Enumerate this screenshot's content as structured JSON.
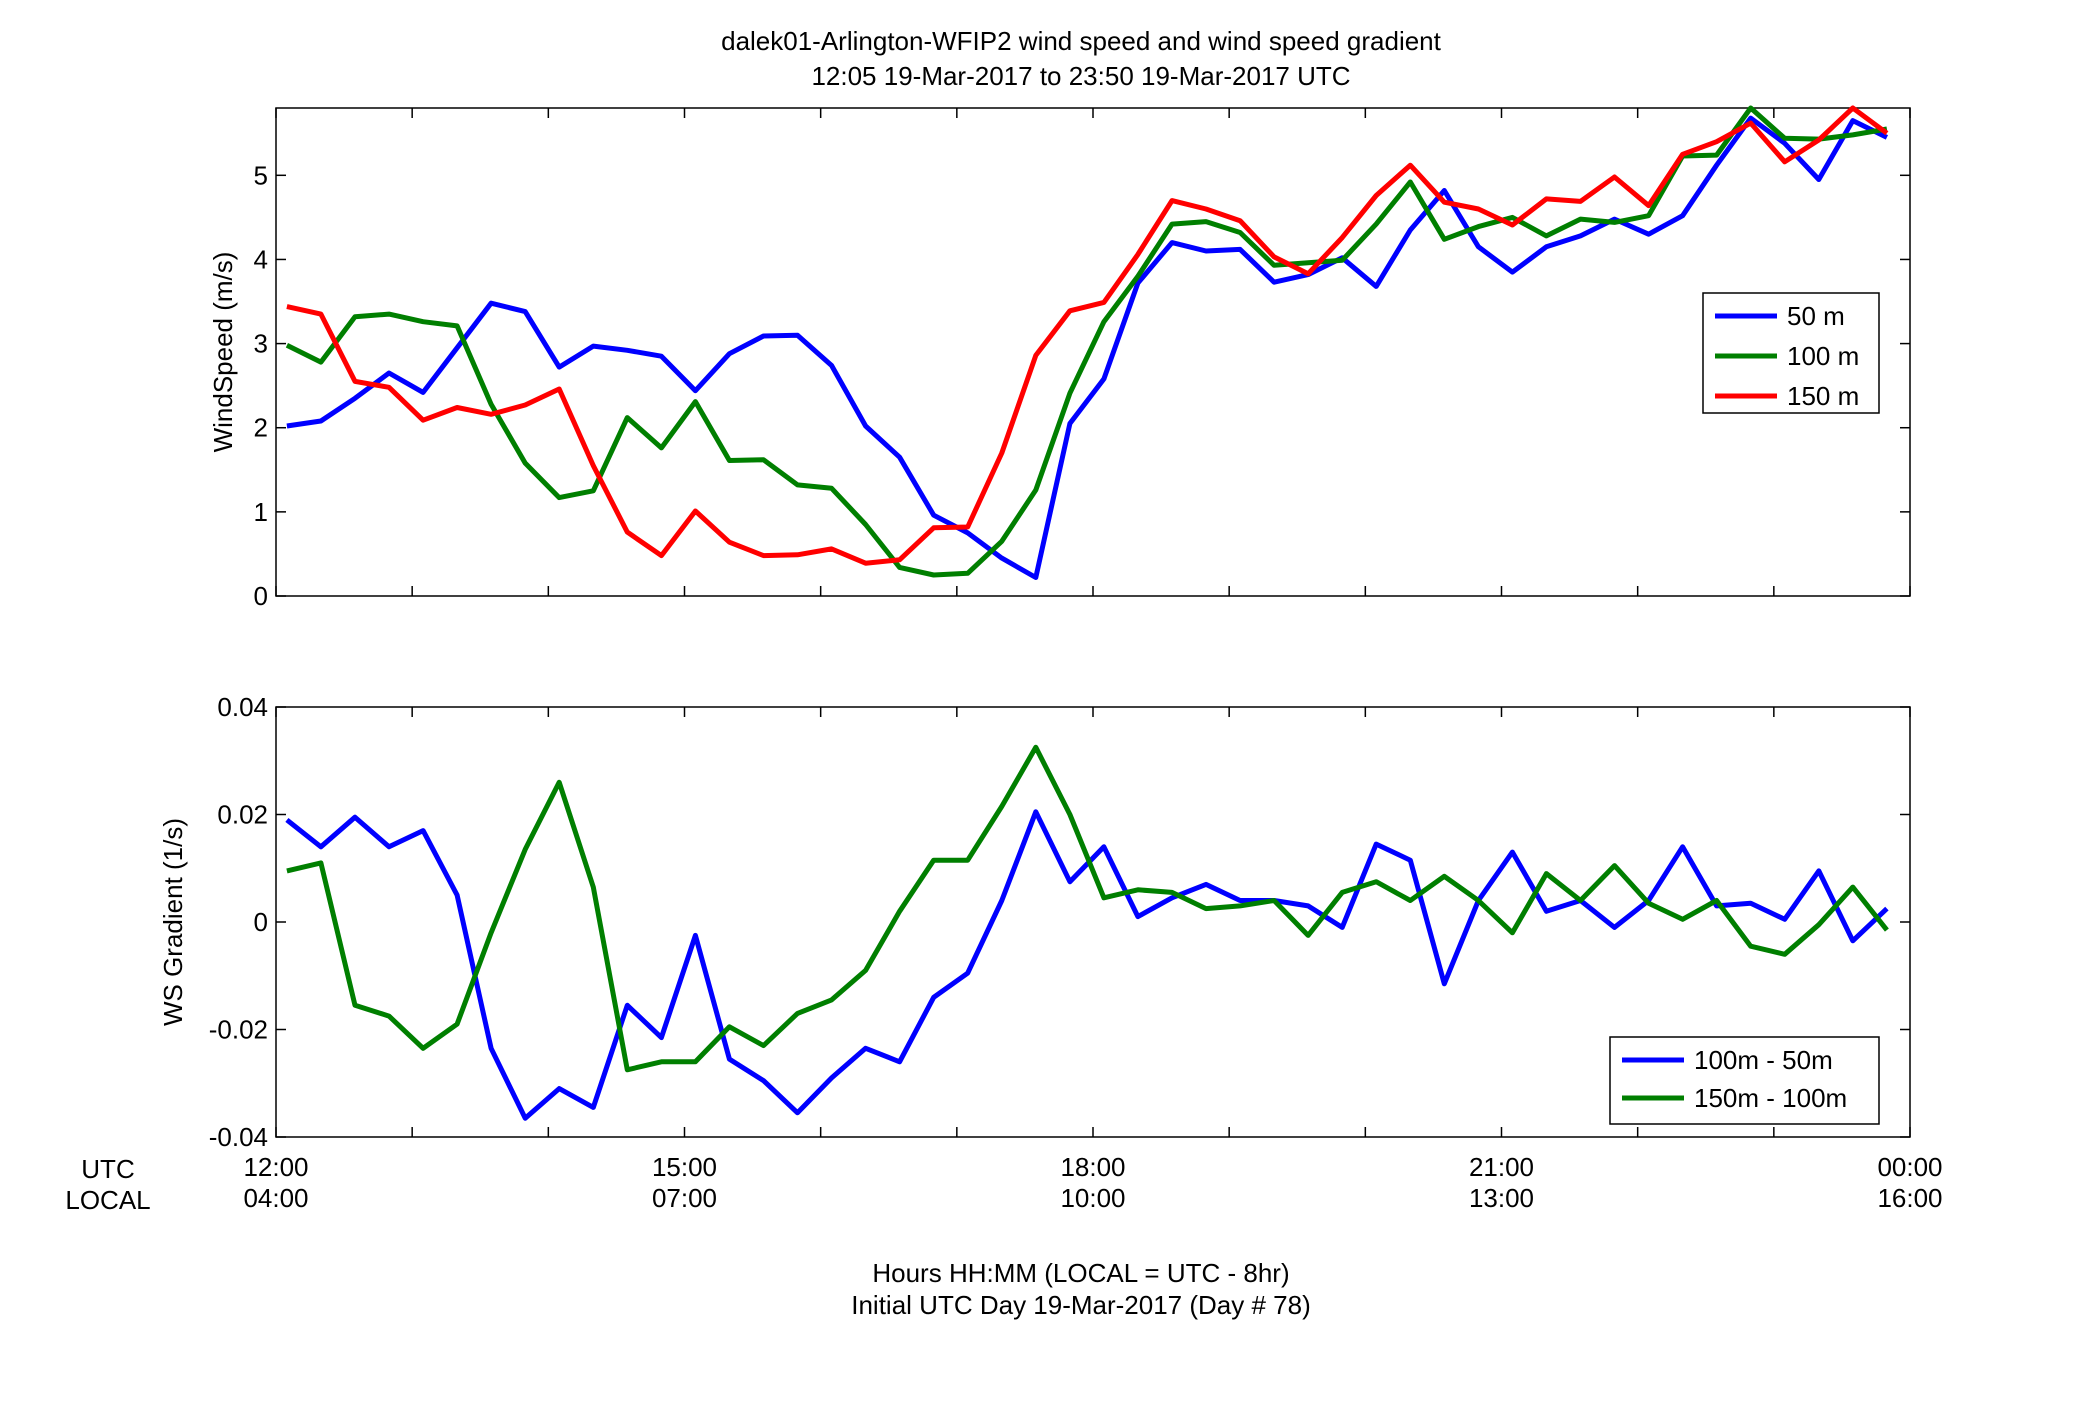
{
  "title": {
    "line1": "dalek01-Arlington-WFIP2  wind speed and wind speed gradient",
    "line2": "12:05 19-Mar-2017 to 23:50 19-Mar-2017  UTC"
  },
  "xaxis": {
    "row_label_utc": "UTC",
    "row_label_local": "LOCAL",
    "range_hours": [
      12,
      24
    ],
    "ticks_major": [
      {
        "hour": 12,
        "utc": "12:00",
        "local": "04:00"
      },
      {
        "hour": 15,
        "utc": "15:00",
        "local": "07:00"
      },
      {
        "hour": 18,
        "utc": "18:00",
        "local": "10:00"
      },
      {
        "hour": 21,
        "utc": "21:00",
        "local": "13:00"
      },
      {
        "hour": 24,
        "utc": "00:00",
        "local": "16:00"
      }
    ],
    "ticks_minor_hours": [
      13,
      14,
      16,
      17,
      19,
      20,
      22,
      23
    ],
    "label_line1": "Hours HH:MM  (LOCAL = UTC - 8hr)",
    "label_line2": "Initial UTC Day 19-Mar-2017 (Day # 78)"
  },
  "colors": {
    "blue": "#0000ff",
    "green": "#007f00",
    "red": "#ff0000"
  },
  "chart_data": [
    {
      "type": "line",
      "ylabel": "WindSpeed (m/s)",
      "ylim": [
        0,
        5.8
      ],
      "yticks": [
        0,
        1,
        2,
        3,
        4,
        5
      ],
      "ytick_labels": [
        "0",
        "1",
        "2",
        "3",
        "4",
        "5"
      ],
      "legend_position": "right",
      "x": [
        12.08,
        12.33,
        12.58,
        12.83,
        13.08,
        13.33,
        13.58,
        13.83,
        14.08,
        14.33,
        14.58,
        14.83,
        15.08,
        15.33,
        15.58,
        15.83,
        16.08,
        16.33,
        16.58,
        16.83,
        17.08,
        17.33,
        17.58,
        17.83,
        18.08,
        18.33,
        18.58,
        18.83,
        19.08,
        19.33,
        19.58,
        19.83,
        20.08,
        20.33,
        20.58,
        20.83,
        21.08,
        21.33,
        21.58,
        21.83,
        22.08,
        22.33,
        22.58,
        22.83,
        23.08,
        23.33,
        23.58,
        23.83
      ],
      "series": [
        {
          "name": "50 m",
          "color": "#0000ff",
          "values": [
            2.02,
            2.08,
            2.35,
            2.65,
            2.42,
            2.95,
            3.48,
            3.38,
            2.72,
            2.97,
            2.92,
            2.85,
            2.44,
            2.88,
            3.09,
            3.1,
            2.74,
            2.02,
            1.65,
            0.96,
            0.75,
            0.45,
            0.22,
            2.05,
            2.58,
            3.72,
            4.2,
            4.1,
            4.12,
            3.73,
            3.82,
            4.02,
            3.68,
            4.35,
            4.82,
            4.15,
            3.85,
            4.15,
            4.28,
            4.48,
            4.3,
            4.52,
            5.12,
            5.68,
            5.38,
            4.95,
            5.65,
            5.45
          ]
        },
        {
          "name": "100 m",
          "color": "#007f00",
          "values": [
            2.98,
            2.78,
            3.32,
            3.35,
            3.26,
            3.21,
            2.28,
            1.58,
            1.17,
            1.25,
            2.12,
            1.76,
            2.31,
            1.61,
            1.62,
            1.32,
            1.28,
            0.85,
            0.34,
            0.25,
            0.27,
            0.65,
            1.26,
            2.41,
            3.26,
            3.8,
            4.42,
            4.45,
            4.32,
            3.93,
            3.96,
            3.99,
            4.42,
            4.92,
            4.24,
            4.39,
            4.5,
            4.28,
            4.48,
            4.44,
            4.52,
            5.23,
            5.24,
            5.8,
            5.44,
            5.43,
            5.48,
            5.55
          ]
        },
        {
          "name": "150 m",
          "color": "#ff0000",
          "values": [
            3.44,
            3.35,
            2.55,
            2.48,
            2.09,
            2.24,
            2.16,
            2.27,
            2.46,
            1.55,
            0.76,
            0.48,
            1.01,
            0.64,
            0.48,
            0.49,
            0.56,
            0.39,
            0.43,
            0.81,
            0.82,
            1.7,
            2.86,
            3.39,
            3.49,
            4.06,
            4.7,
            4.6,
            4.46,
            4.03,
            3.83,
            4.26,
            4.76,
            5.12,
            4.68,
            4.6,
            4.41,
            4.72,
            4.69,
            4.98,
            4.64,
            5.25,
            5.4,
            5.62,
            5.16,
            5.42,
            5.8,
            5.5
          ]
        }
      ]
    },
    {
      "type": "line",
      "ylabel": "WS Gradient (1/s)",
      "ylim": [
        -0.04,
        0.04
      ],
      "yticks": [
        -0.04,
        -0.02,
        0,
        0.02,
        0.04
      ],
      "ytick_labels": [
        "-0.04",
        "-0.02",
        "0",
        "0.02",
        "0.04"
      ],
      "legend_position": "bottom-right",
      "x": [
        12.08,
        12.33,
        12.58,
        12.83,
        13.08,
        13.33,
        13.58,
        13.83,
        14.08,
        14.33,
        14.58,
        14.83,
        15.08,
        15.33,
        15.58,
        15.83,
        16.08,
        16.33,
        16.58,
        16.83,
        17.08,
        17.33,
        17.58,
        17.83,
        18.08,
        18.33,
        18.58,
        18.83,
        19.08,
        19.33,
        19.58,
        19.83,
        20.08,
        20.33,
        20.58,
        20.83,
        21.08,
        21.33,
        21.58,
        21.83,
        22.08,
        22.33,
        22.58,
        22.83,
        23.08,
        23.33,
        23.58,
        23.83
      ],
      "series": [
        {
          "name": "100m - 50m",
          "color": "#0000ff",
          "values": [
            0.019,
            0.014,
            0.0195,
            0.014,
            0.017,
            0.005,
            -0.0235,
            -0.0365,
            -0.031,
            -0.0345,
            -0.0155,
            -0.0215,
            -0.0025,
            -0.0255,
            -0.0295,
            -0.0355,
            -0.029,
            -0.0235,
            -0.026,
            -0.014,
            -0.0095,
            0.004,
            0.0205,
            0.0075,
            0.014,
            0.001,
            0.0045,
            0.007,
            0.004,
            0.004,
            0.003,
            -0.001,
            0.0145,
            0.0115,
            -0.0115,
            0.004,
            0.013,
            0.002,
            0.004,
            -0.001,
            0.004,
            0.014,
            0.003,
            0.0035,
            0.0005,
            0.0095,
            -0.0035,
            0.0025
          ]
        },
        {
          "name": "150m - 100m",
          "color": "#007f00",
          "values": [
            0.0095,
            0.011,
            -0.0155,
            -0.0175,
            -0.0235,
            -0.019,
            -0.002,
            0.0135,
            0.026,
            0.0065,
            -0.0275,
            -0.026,
            -0.026,
            -0.0195,
            -0.023,
            -0.017,
            -0.0145,
            -0.009,
            0.002,
            0.0115,
            0.0115,
            0.0215,
            0.0325,
            0.02,
            0.0045,
            0.006,
            0.0055,
            0.0025,
            0.003,
            0.004,
            -0.0025,
            0.0055,
            0.0075,
            0.004,
            0.0085,
            0.004,
            -0.002,
            0.009,
            0.004,
            0.0105,
            0.0035,
            0.0005,
            0.004,
            -0.0045,
            -0.006,
            -0.0005,
            0.0065,
            -0.0015
          ]
        }
      ]
    }
  ]
}
